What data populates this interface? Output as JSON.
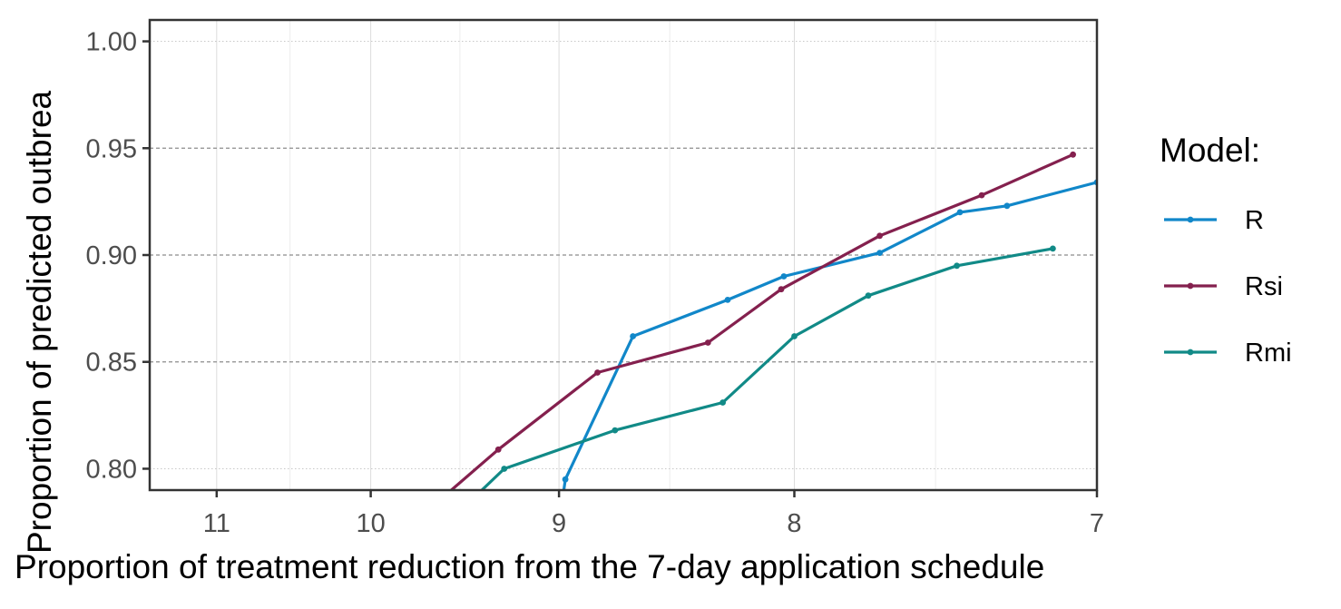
{
  "chart_data": {
    "type": "line",
    "xlabel": "Proportion of treatment reduction from the 7-day application schedule",
    "ylabel": "Proportion of predicted outbrea",
    "x_ticks": [
      {
        "value": 11,
        "label": "11"
      },
      {
        "value": 10,
        "label": "10"
      },
      {
        "value": 9,
        "label": "9"
      },
      {
        "value": 8,
        "label": "8"
      },
      {
        "value": 7,
        "label": "7"
      }
    ],
    "x_scale": "reciprocal",
    "xlim": [
      11.5,
      7
    ],
    "y_ticks": [
      {
        "value": 0.8,
        "label": "0.80"
      },
      {
        "value": 0.85,
        "label": "0.85"
      },
      {
        "value": 0.9,
        "label": "0.90"
      },
      {
        "value": 0.95,
        "label": "0.95"
      },
      {
        "value": 1.0,
        "label": "1.00"
      }
    ],
    "ylim": [
      0.79,
      1.01
    ],
    "grid": true,
    "legend": {
      "title": "Model:",
      "position": "right"
    },
    "series": [
      {
        "name": "R",
        "color": "#1187c9",
        "points": [
          [
            9.0,
            0.774
          ],
          [
            8.97,
            0.795
          ],
          [
            8.66,
            0.862
          ],
          [
            8.26,
            0.879
          ],
          [
            8.04,
            0.89
          ],
          [
            7.69,
            0.901
          ],
          [
            7.42,
            0.92
          ],
          [
            7.27,
            0.923
          ],
          [
            7.0,
            0.934
          ]
        ]
      },
      {
        "name": "Rsi",
        "color": "#84204e",
        "points": [
          [
            9.75,
            0.775
          ],
          [
            9.3,
            0.809
          ],
          [
            8.82,
            0.845
          ],
          [
            8.34,
            0.859
          ],
          [
            8.05,
            0.884
          ],
          [
            7.69,
            0.909
          ],
          [
            7.35,
            0.928
          ],
          [
            7.07,
            0.947
          ]
        ]
      },
      {
        "name": "Rmi",
        "color": "#118a87",
        "points": [
          [
            9.55,
            0.776
          ],
          [
            9.27,
            0.8
          ],
          [
            8.74,
            0.818
          ],
          [
            8.28,
            0.831
          ],
          [
            8.0,
            0.862
          ],
          [
            7.73,
            0.881
          ],
          [
            7.43,
            0.895
          ],
          [
            7.13,
            0.903
          ]
        ]
      }
    ]
  }
}
